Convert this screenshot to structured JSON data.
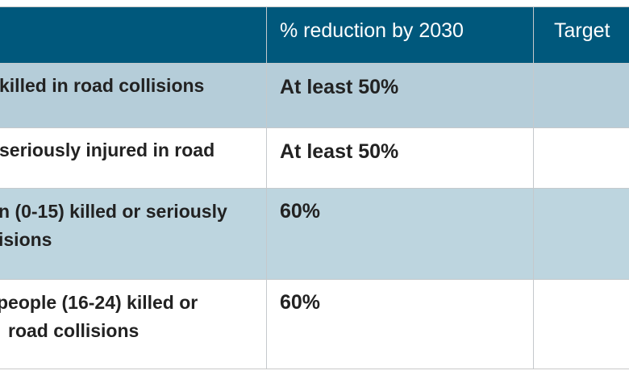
{
  "table": {
    "headers": [
      "",
      "% reduction by 2030",
      "Target"
    ],
    "rows": [
      {
        "measure": [
          "killed in road collisions"
        ],
        "reduction": "At least 50%",
        "target": ""
      },
      {
        "measure": [
          "seriously injured in road"
        ],
        "reduction": "At least 50%",
        "target": ""
      },
      {
        "measure": [
          "n (0-15) killed or seriously",
          "isions"
        ],
        "reduction": "60%",
        "target": ""
      },
      {
        "measure": [
          "people (16-24) killed or",
          "road collisions"
        ],
        "reduction": "60%",
        "target": ""
      }
    ]
  },
  "colors": {
    "header": "#00587c",
    "row_shaded": "#b5cdd9",
    "row_plain": "#ffffff"
  }
}
